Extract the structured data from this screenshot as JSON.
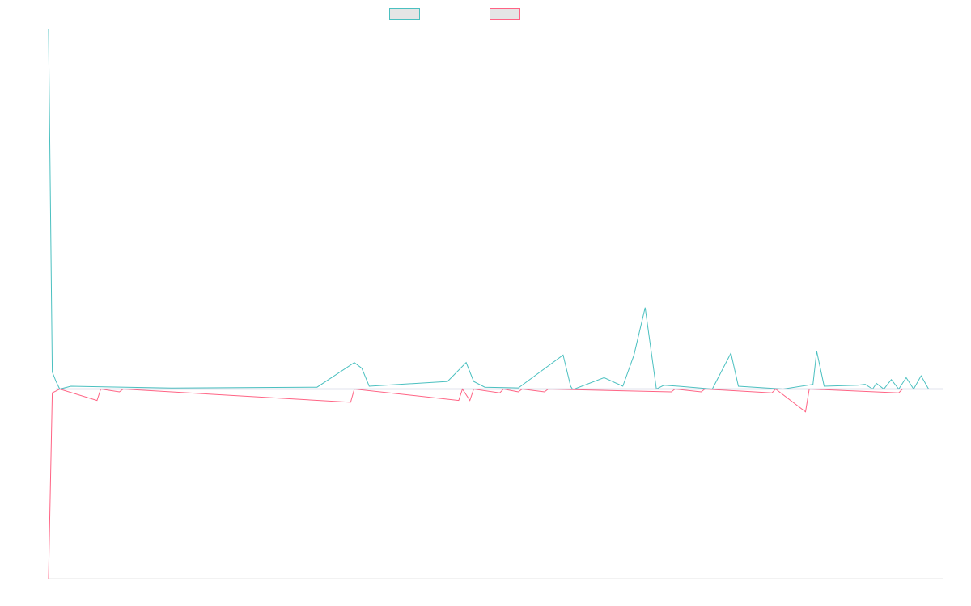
{
  "chart_data": {
    "type": "line",
    "title": "",
    "xlabel": "",
    "ylabel": "",
    "legend_position": "top-center",
    "grid": false,
    "x_range": [
      0,
      240
    ],
    "ylim": [
      -100,
      190
    ],
    "series": [
      {
        "legend_label": "",
        "color": "#4bc0c0",
        "points": [
          [
            0,
            190
          ],
          [
            1,
            9
          ],
          [
            2,
            4
          ],
          [
            3,
            0
          ],
          [
            6,
            1.5
          ],
          [
            33,
            0.5
          ],
          [
            72,
            1
          ],
          [
            82,
            14
          ],
          [
            84,
            11
          ],
          [
            86,
            1.5
          ],
          [
            107,
            4
          ],
          [
            112,
            14
          ],
          [
            114,
            4
          ],
          [
            117,
            1
          ],
          [
            126,
            0.6
          ],
          [
            138,
            18
          ],
          [
            140,
            1.5
          ],
          [
            140.5,
            0
          ],
          [
            141,
            0
          ],
          [
            149,
            6
          ],
          [
            154,
            1.5
          ],
          [
            157,
            18
          ],
          [
            160,
            43
          ],
          [
            163,
            0
          ],
          [
            165,
            2
          ],
          [
            169,
            1.5
          ],
          [
            178,
            0
          ],
          [
            183,
            19
          ],
          [
            185,
            1.5
          ],
          [
            197,
            0
          ],
          [
            205,
            2.5
          ],
          [
            206,
            20
          ],
          [
            208,
            1.5
          ],
          [
            217,
            2
          ],
          [
            219,
            2.5
          ],
          [
            221,
            0
          ],
          [
            222,
            3
          ],
          [
            224,
            0
          ],
          [
            226,
            5
          ],
          [
            228,
            0
          ],
          [
            230,
            6
          ],
          [
            232,
            0
          ],
          [
            234,
            7
          ],
          [
            236,
            0
          ],
          [
            240,
            0
          ]
        ]
      },
      {
        "legend_label": "",
        "color": "#ff6384",
        "points": [
          [
            0,
            -100
          ],
          [
            1,
            -2
          ],
          [
            2,
            -1
          ],
          [
            3,
            0
          ],
          [
            13,
            -6
          ],
          [
            14,
            0
          ],
          [
            19,
            -1.5
          ],
          [
            20,
            0
          ],
          [
            81,
            -7
          ],
          [
            82,
            0
          ],
          [
            110,
            -6
          ],
          [
            111,
            0
          ],
          [
            113,
            -6
          ],
          [
            114,
            0
          ],
          [
            121,
            -2
          ],
          [
            122,
            0
          ],
          [
            126,
            -1.5
          ],
          [
            127,
            0
          ],
          [
            133,
            -1.5
          ],
          [
            134,
            0
          ],
          [
            167,
            -1.5
          ],
          [
            168,
            0
          ],
          [
            175,
            -1.5
          ],
          [
            176,
            0
          ],
          [
            194,
            -2
          ],
          [
            195,
            0
          ],
          [
            203,
            -12
          ],
          [
            204,
            0
          ],
          [
            228,
            -2
          ],
          [
            229,
            0
          ],
          [
            240,
            0
          ]
        ]
      }
    ]
  }
}
